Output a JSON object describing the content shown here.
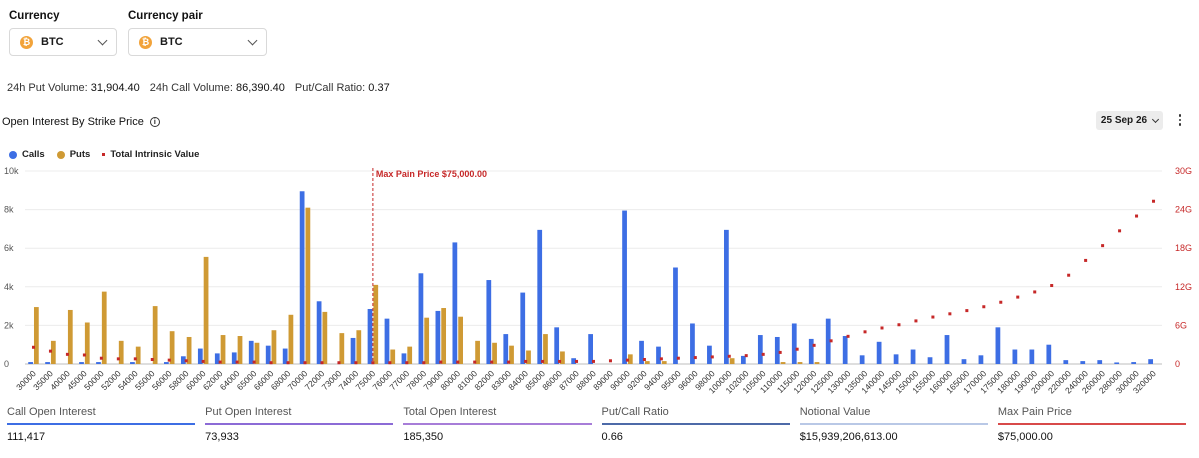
{
  "header": {
    "currency_label": "Currency",
    "currency_value": "BTC",
    "pair_label": "Currency pair",
    "pair_value": "BTC",
    "coin_glyph": "₿"
  },
  "stats": {
    "put_volume_label": "24h Put Volume:",
    "put_volume": "31,904.40",
    "call_volume_label": "24h Call Volume:",
    "call_volume": "86,390.40",
    "ratio_label": "Put/Call Ratio:",
    "ratio": "0.37"
  },
  "section": {
    "title": "Open Interest By Strike Price",
    "info_icon": "i",
    "expiry": "25 Sep 26"
  },
  "legend": {
    "calls": "Calls",
    "puts": "Puts",
    "intrinsic": "Total Intrinsic Value"
  },
  "colors": {
    "calls": "#3d6ee4",
    "puts": "#cf9a34",
    "intrinsic": "#c62828",
    "max_pain": "#c62828"
  },
  "chart_data": {
    "type": "bar",
    "categories": [
      "30000",
      "35000",
      "40000",
      "45000",
      "50000",
      "52000",
      "54000",
      "55000",
      "56000",
      "58000",
      "60000",
      "62000",
      "64000",
      "65000",
      "66000",
      "68000",
      "70000",
      "72000",
      "73000",
      "74000",
      "75000",
      "76000",
      "77000",
      "78000",
      "79000",
      "80000",
      "81000",
      "82000",
      "83000",
      "84000",
      "85000",
      "86000",
      "87000",
      "88000",
      "89000",
      "90000",
      "92000",
      "94000",
      "95000",
      "96000",
      "98000",
      "100000",
      "102000",
      "105000",
      "110000",
      "115000",
      "120000",
      "125000",
      "130000",
      "135000",
      "140000",
      "145000",
      "150000",
      "155000",
      "160000",
      "165000",
      "170000",
      "175000",
      "180000",
      "190000",
      "200000",
      "220000",
      "240000",
      "260000",
      "280000",
      "300000",
      "320000"
    ],
    "series": [
      {
        "name": "Calls",
        "axis": "left",
        "values": [
          100,
          100,
          0,
          100,
          100,
          0,
          100,
          0,
          100,
          400,
          800,
          550,
          600,
          1200,
          950,
          800,
          8950,
          3250,
          0,
          1350,
          2850,
          2350,
          550,
          4700,
          2750,
          6300,
          0,
          4350,
          1550,
          3700,
          6950,
          1900,
          300,
          1550,
          0,
          7950,
          1200,
          900,
          5000,
          2100,
          950,
          6950,
          420,
          1500,
          1400,
          2100,
          1300,
          2350,
          1450,
          450,
          1150,
          500,
          750,
          350,
          1500,
          250,
          450,
          1900,
          750,
          750,
          1000,
          200,
          150,
          200,
          80,
          100,
          250
        ]
      },
      {
        "name": "Puts",
        "axis": "left",
        "values": [
          2950,
          1200,
          2800,
          2150,
          3750,
          1200,
          900,
          3000,
          1700,
          1400,
          5550,
          1500,
          1450,
          1100,
          1750,
          2550,
          8100,
          2700,
          1600,
          1750,
          4100,
          750,
          900,
          2400,
          2900,
          2450,
          1200,
          1100,
          950,
          700,
          1550,
          650,
          0,
          0,
          0,
          500,
          150,
          150,
          0,
          0,
          0,
          300,
          0,
          0,
          100,
          100,
          100,
          0,
          0,
          0,
          0,
          0,
          0,
          0,
          0,
          0,
          0,
          0,
          0,
          0,
          0,
          0,
          0,
          0,
          0,
          0,
          0
        ]
      },
      {
        "name": "Total Intrinsic Value",
        "axis": "right",
        "type": "scatter",
        "values": [
          2.6,
          2.0,
          1.5,
          1.4,
          0.9,
          0.8,
          0.8,
          0.7,
          0.6,
          0.5,
          0.4,
          0.3,
          0.3,
          0.3,
          0.2,
          0.2,
          0.2,
          0.2,
          0.2,
          0.2,
          0.2,
          0.2,
          0.2,
          0.2,
          0.3,
          0.3,
          0.3,
          0.3,
          0.3,
          0.4,
          0.4,
          0.4,
          0.4,
          0.4,
          0.5,
          0.6,
          0.7,
          0.8,
          0.9,
          1.0,
          1.1,
          1.2,
          1.3,
          1.5,
          1.8,
          2.3,
          2.9,
          3.6,
          4.3,
          5.0,
          5.6,
          6.1,
          6.7,
          7.3,
          7.8,
          8.3,
          8.9,
          9.6,
          10.4,
          11.2,
          12.2,
          13.8,
          16.1,
          18.4,
          20.7,
          23.0,
          25.3
        ]
      }
    ],
    "y_left": {
      "min": 0,
      "max": 10000,
      "ticks": [
        0,
        2000,
        4000,
        6000,
        8000,
        10000
      ],
      "tick_labels": [
        "0",
        "2k",
        "4k",
        "6k",
        "8k",
        "10k"
      ]
    },
    "y_right": {
      "min": 0,
      "max": 30,
      "ticks": [
        0,
        6,
        12,
        18,
        24,
        30
      ],
      "tick_labels": [
        "0",
        "6G",
        "12G",
        "18G",
        "24G",
        "30G"
      ]
    },
    "max_pain": {
      "strike": "75000",
      "label": "Max Pain Price $75,000.00"
    },
    "grid": true,
    "legend_position": "top-left"
  },
  "metrics": [
    {
      "label": "Call Open Interest",
      "value": "111,417",
      "color": "#3d6ee4"
    },
    {
      "label": "Put Open Interest",
      "value": "73,933",
      "color": "#8c6bd6"
    },
    {
      "label": "Total Open Interest",
      "value": "185,350",
      "color": "#a77dd8"
    },
    {
      "label": "Put/Call Ratio",
      "value": "0.66",
      "color": "#4d6aa8"
    },
    {
      "label": "Notional Value",
      "value": "$15,939,206,613.00",
      "color": "#b9c8e6"
    },
    {
      "label": "Max Pain Price",
      "value": "$75,000.00",
      "color": "#d84a4a"
    }
  ]
}
